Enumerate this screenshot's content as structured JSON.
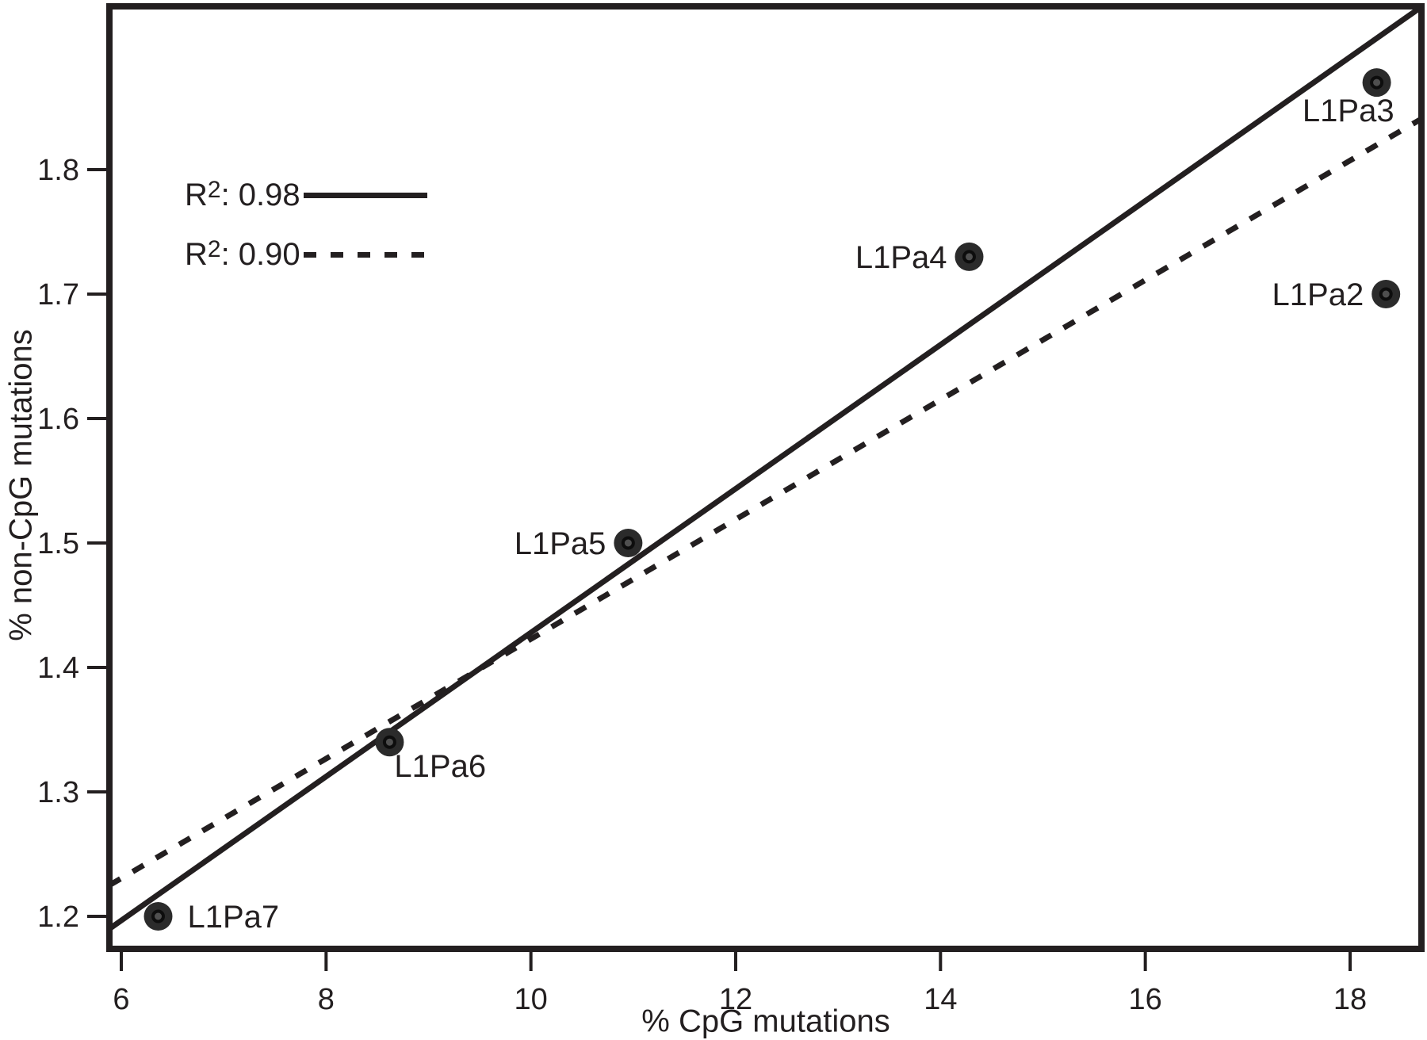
{
  "figure": {
    "background": "#ffffff"
  },
  "legend": {
    "entries": [
      {
        "prefix": "R",
        "sup": "2",
        "rest": ": 0.98",
        "style": "solid"
      },
      {
        "prefix": "R",
        "sup": "2",
        "rest": ": 0.90",
        "style": "dashed"
      }
    ]
  },
  "chart_data": {
    "type": "scatter",
    "title": "",
    "xlabel": "% CpG mutations",
    "ylabel": "% non-CpG mutations",
    "xlim": [
      5.88,
      18.7
    ],
    "ylim": [
      1.19,
      1.93
    ],
    "grid": false,
    "legend_position": "top-left",
    "xticks": [
      6,
      8,
      10,
      12,
      14,
      16,
      18
    ],
    "xtick_labels": [
      "6",
      "8",
      "10",
      "12",
      "14",
      "16",
      "18"
    ],
    "yticks": [
      1.2,
      1.3,
      1.4,
      1.5,
      1.6,
      1.7,
      1.8
    ],
    "ytick_labels": [
      "1.2",
      "1.3",
      "1.4",
      "1.5",
      "1.6",
      "1.7",
      "1.8"
    ],
    "points": [
      {
        "label": "L1Pa7",
        "x": 6.36,
        "y": 1.2,
        "label_side": "right"
      },
      {
        "label": "L1Pa6",
        "x": 8.62,
        "y": 1.34,
        "label_side": "below-right"
      },
      {
        "label": "L1Pa5",
        "x": 10.95,
        "y": 1.5,
        "label_side": "left"
      },
      {
        "label": "L1Pa4",
        "x": 14.28,
        "y": 1.73,
        "label_side": "left"
      },
      {
        "label": "L1Pa3",
        "x": 18.26,
        "y": 1.87,
        "label_side": "below-left"
      },
      {
        "label": "L1Pa2",
        "x": 18.35,
        "y": 1.7,
        "label_side": "left"
      }
    ],
    "lines": [
      {
        "name": "fit-solid",
        "r2": "0.98",
        "style": "solid",
        "x1": 5.884,
        "y1": 1.19,
        "x2": 18.7,
        "y2": 1.931
      },
      {
        "name": "fit-dashed",
        "r2": "0.90",
        "style": "dashed",
        "x1": 5.884,
        "y1": 1.225,
        "x2": 18.7,
        "y2": 1.841
      }
    ],
    "colors": {
      "ink": "#231f20",
      "marker_fill": "#2b2b2b",
      "marker_inner": "#4f4f4f",
      "marker_ring": "#0d0d0d",
      "background": "#ffffff"
    }
  }
}
